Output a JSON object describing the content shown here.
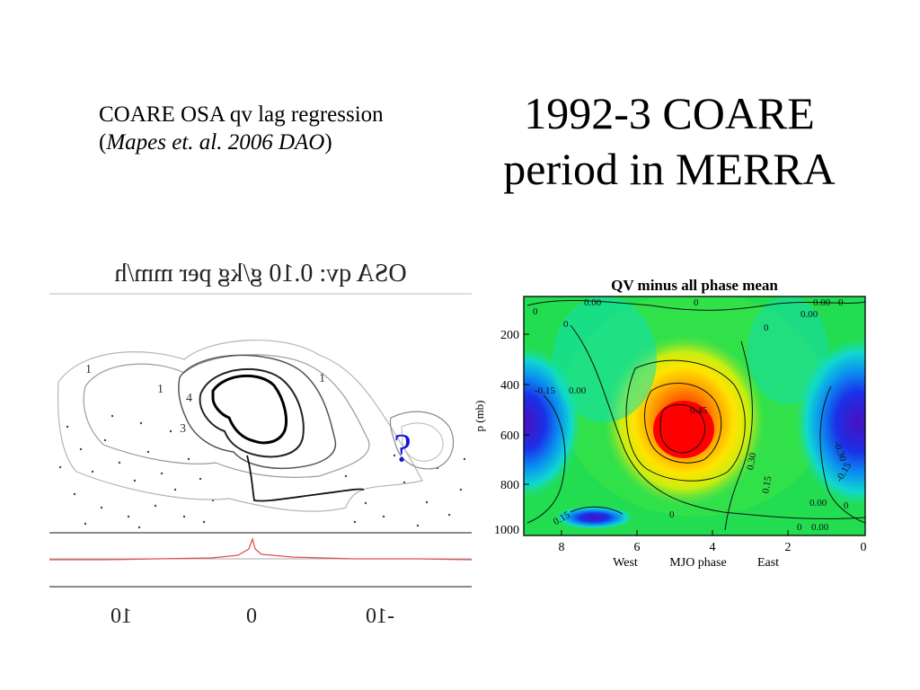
{
  "slide": {
    "title_line1": "1992-3 COARE",
    "title_line2": "period in MERRA",
    "caption_prefix": "COARE OSA qv lag regression (",
    "caption_italic": "Mapes et. al. 2006 DAO",
    "caption_suffix": ")"
  },
  "left_figure": {
    "mirrored_title": "OSA qv: 0.10 g/kg per mm/h",
    "x_ticks": [
      "10",
      "0",
      "-10"
    ],
    "question_mark": "?",
    "contour_labels": [
      "4",
      "1",
      "1",
      "1",
      "3"
    ],
    "colors": {
      "question": "#1515d8",
      "curve": "#e05050"
    }
  },
  "right_figure": {
    "title": "QV minus all phase mean",
    "ylabel": "p (mb)",
    "y_ticks": [
      "200",
      "400",
      "600",
      "800",
      "1000"
    ],
    "x_ticks": [
      "8",
      "6",
      "4",
      "2",
      "0"
    ],
    "x_sublabels": [
      "West",
      "MJO phase",
      "East"
    ],
    "contour_labels": [
      "0.00",
      "0",
      "0",
      "0",
      "0.00",
      "0.00",
      "0",
      "0",
      "0.00",
      "-0.15",
      "0.45",
      "0.30",
      "0.15",
      "-0.15",
      "0.00",
      "0",
      "0",
      "0.15",
      "-0.30",
      "0.00",
      "0"
    ]
  }
}
